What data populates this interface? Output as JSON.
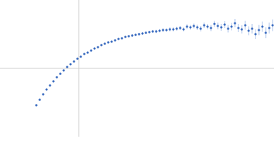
{
  "chart_data": {
    "type": "scatter",
    "x": [
      -62,
      -57,
      -52,
      -47,
      -42,
      -37,
      -32,
      -27,
      -22,
      -17,
      -12,
      -7,
      -2,
      3,
      8,
      13,
      18,
      23,
      28,
      33,
      38,
      43,
      48,
      53,
      58,
      63,
      68,
      73,
      78,
      83,
      88,
      93,
      98,
      103,
      108,
      113,
      118,
      123,
      128,
      133,
      138,
      143,
      148,
      153,
      158,
      163,
      168,
      173,
      178,
      183,
      188,
      193,
      198,
      203,
      208,
      213,
      218,
      223,
      228,
      233,
      238,
      243,
      248,
      253,
      258,
      263,
      268,
      273,
      278,
      283
    ],
    "values": [
      -54,
      -46,
      -38,
      -31,
      -25,
      -19,
      -13,
      -8,
      -3,
      2,
      6,
      10,
      14,
      17,
      21,
      23,
      26,
      29,
      31,
      34,
      36,
      38,
      39,
      41,
      43,
      44,
      46,
      47,
      48,
      49,
      50,
      51,
      52,
      53,
      54,
      54,
      55,
      56,
      56,
      57,
      57,
      58,
      59,
      57,
      61,
      60,
      62,
      60,
      58,
      63,
      61,
      59,
      65,
      62,
      60,
      64,
      58,
      61,
      66,
      59,
      57,
      63,
      55,
      58,
      50,
      56,
      61,
      52,
      59,
      63
    ],
    "errors": [
      1,
      1,
      1,
      1,
      1,
      1,
      1,
      1,
      1,
      1,
      1,
      1,
      1,
      1,
      1,
      1,
      1,
      1,
      1,
      1,
      1,
      1.5,
      1.5,
      1.5,
      1.5,
      1.5,
      1.5,
      1.5,
      2,
      2,
      2,
      2,
      2,
      2,
      2,
      2.5,
      2.5,
      2.5,
      2.5,
      3,
      3,
      3,
      3,
      3,
      3.5,
      3.5,
      3.5,
      4,
      4,
      4,
      4,
      4.5,
      4.5,
      5,
      5,
      5,
      5.5,
      5.5,
      6,
      6,
      6,
      6.5,
      6.5,
      7,
      7,
      7.5,
      7.5,
      8,
      8,
      8.5
    ],
    "color": "#3b6cc0",
    "error_color": "#a9c1ea",
    "axis_color": "#cccccc",
    "xlim": [
      -115,
      285
    ],
    "ylim": [
      -100,
      100
    ]
  }
}
